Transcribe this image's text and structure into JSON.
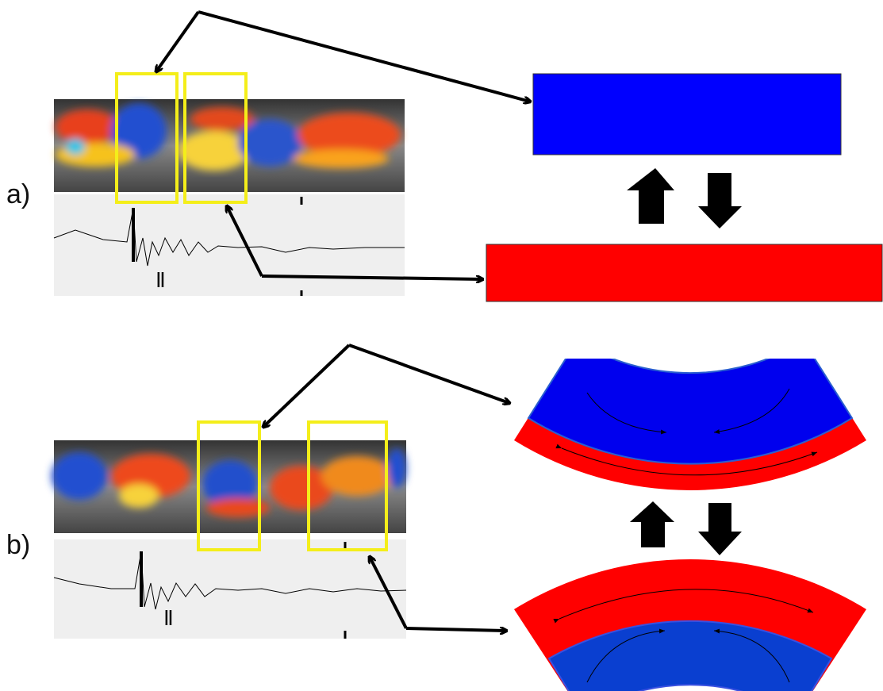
{
  "panels": [
    {
      "label": "a)",
      "lead": "Ⅱ"
    },
    {
      "label": "b)",
      "lead": "Ⅱ"
    }
  ]
}
